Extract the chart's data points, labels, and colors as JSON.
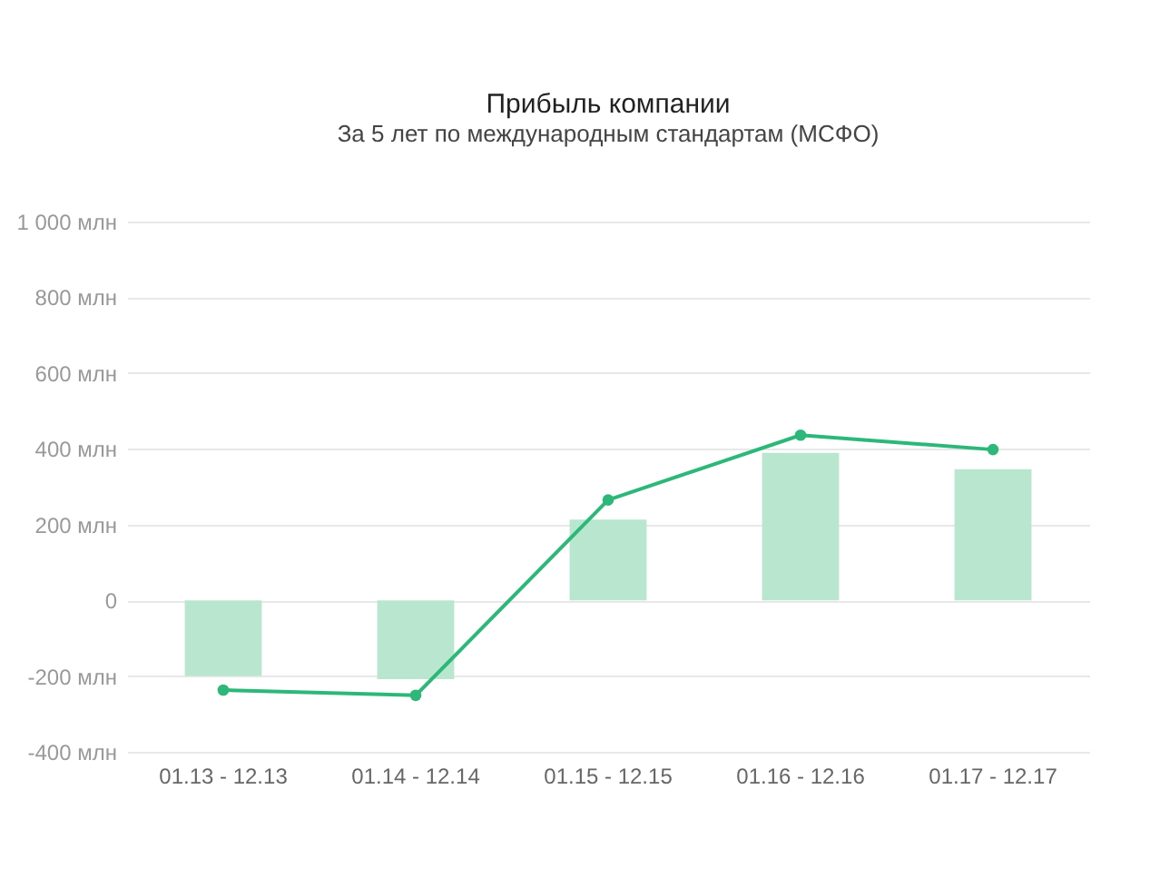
{
  "chart_data": {
    "type": "bar",
    "title": "Прибыль компании",
    "subtitle": "За 5 лет по международным стандартам (МСФО)",
    "categories": [
      "01.13 - 12.13",
      "01.14 - 12.14",
      "01.15 - 12.15",
      "01.16 - 12.16",
      "01.17 - 12.17"
    ],
    "series": [
      {
        "color": "#b8e6cf",
        "values": [
          -200,
          -208,
          213,
          389,
          346
        ]
      },
      {
        "type": "line",
        "color": "#2db87a",
        "values": [
          -237,
          -251,
          265,
          436,
          398
        ]
      }
    ],
    "ylim": [
      -400,
      1000
    ],
    "yticks": [
      {
        "value": -400,
        "label": "-400 млн"
      },
      {
        "value": -200,
        "label": "-200 млн"
      },
      {
        "value": 0,
        "label": "0"
      },
      {
        "value": 200,
        "label": "200 млн"
      },
      {
        "value": 400,
        "label": "400 млн"
      },
      {
        "value": 600,
        "label": "600 млн"
      },
      {
        "value": 800,
        "label": "800 млн"
      },
      {
        "value": 1000,
        "label": "1 000 млн"
      }
    ],
    "grid": "y",
    "marker": "circle",
    "line_style": "solid"
  }
}
